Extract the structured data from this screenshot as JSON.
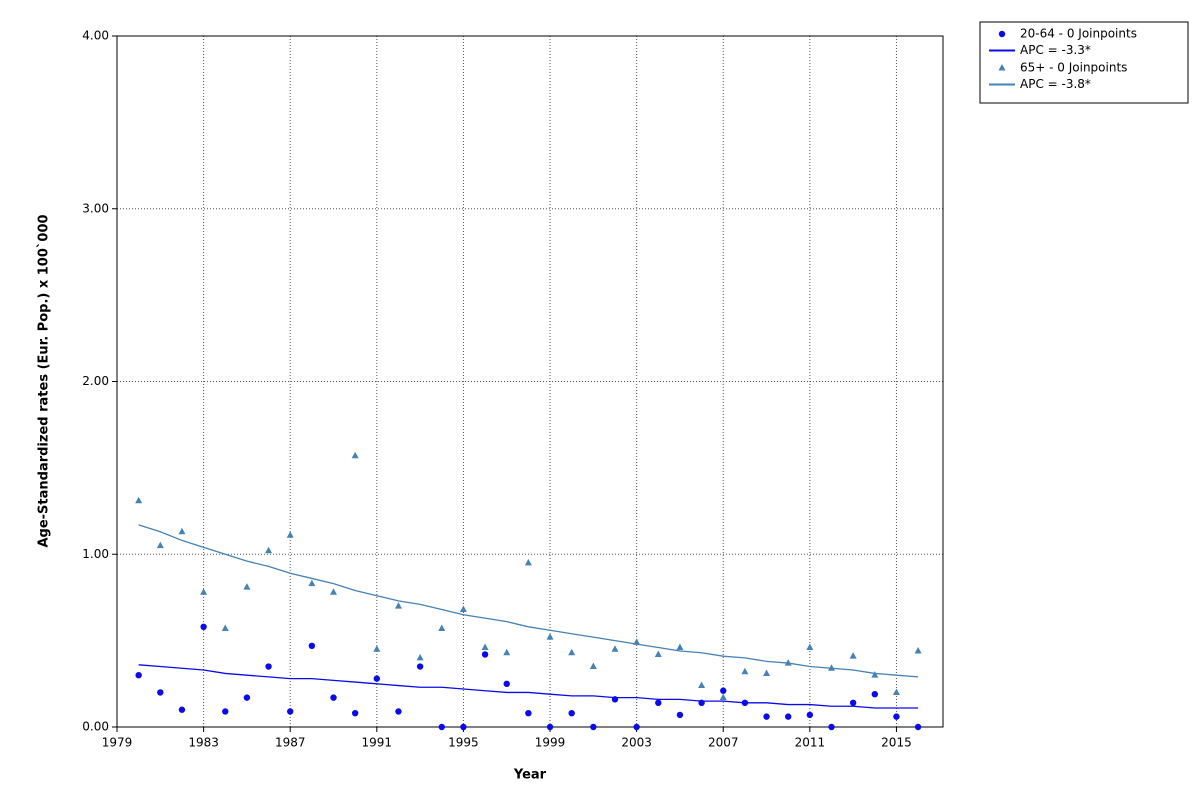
{
  "chart_data": {
    "type": "scatter",
    "xlabel": "Year",
    "ylabel": "Age-Standardized rates (Eur. Pop.) x 100`000",
    "x": [
      1980,
      1981,
      1982,
      1983,
      1984,
      1985,
      1986,
      1987,
      1988,
      1989,
      1990,
      1991,
      1992,
      1993,
      1994,
      1995,
      1996,
      1997,
      1998,
      1999,
      2000,
      2001,
      2002,
      2003,
      2004,
      2005,
      2006,
      2007,
      2008,
      2009,
      2010,
      2011,
      2012,
      2013,
      2014,
      2015,
      2016
    ],
    "xlim": [
      1979,
      2017.15
    ],
    "xticks": [
      1979,
      1983,
      1987,
      1991,
      1995,
      1999,
      2003,
      2007,
      2011,
      2015
    ],
    "ylim": [
      0,
      4
    ],
    "yticks": [
      {
        "value": 0,
        "label": "0.00"
      },
      {
        "value": 1,
        "label": "1.00"
      },
      {
        "value": 2,
        "label": "2.00"
      },
      {
        "value": 3,
        "label": "3.00"
      },
      {
        "value": 4,
        "label": "4.00"
      }
    ],
    "grid": true,
    "legend": "outside-top-right",
    "series": [
      {
        "name": "20-64 - 0 Joinpoints",
        "color": "#0a0aeb",
        "marker": "circle",
        "values": [
          0.3,
          0.2,
          0.1,
          0.58,
          0.09,
          0.17,
          0.35,
          0.09,
          0.47,
          0.17,
          0.08,
          0.28,
          0.09,
          0.35,
          0,
          0,
          0.42,
          0.25,
          0.08,
          0,
          0.08,
          0,
          0.16,
          0,
          0.14,
          0.07,
          0.14,
          0.21,
          0.14,
          0.06,
          0.06,
          0.07,
          0,
          0.14,
          0.19,
          0.06,
          0
        ]
      },
      {
        "name": "APC = -3.3*",
        "color": "#0a0aeb",
        "marker": "line",
        "values": [
          0.36,
          0.35,
          0.34,
          0.33,
          0.31,
          0.3,
          0.29,
          0.28,
          0.28,
          0.27,
          0.26,
          0.25,
          0.24,
          0.23,
          0.23,
          0.22,
          0.21,
          0.2,
          0.2,
          0.19,
          0.18,
          0.18,
          0.17,
          0.17,
          0.16,
          0.16,
          0.15,
          0.15,
          0.14,
          0.14,
          0.13,
          0.13,
          0.12,
          0.12,
          0.11,
          0.11,
          0.11
        ]
      },
      {
        "name": "65+ - 0 Joinpoints",
        "color": "#4682b4",
        "marker": "triangle",
        "values": [
          1.31,
          1.05,
          1.13,
          0.78,
          0.57,
          0.81,
          1.02,
          1.11,
          0.83,
          0.78,
          1.57,
          0.45,
          0.7,
          0.4,
          0.57,
          0.68,
          0.46,
          0.43,
          0.95,
          0.52,
          0.43,
          0.35,
          0.45,
          0.49,
          0.42,
          0.46,
          0.24,
          0.17,
          0.32,
          0.31,
          0.37,
          0.46,
          0.34,
          0.41,
          0.3,
          0.2,
          0.44
        ]
      },
      {
        "name": "APC = -3.8*",
        "color": "#4682b4",
        "marker": "line",
        "values": [
          1.17,
          1.13,
          1.08,
          1.04,
          1.0,
          0.96,
          0.93,
          0.89,
          0.86,
          0.83,
          0.79,
          0.76,
          0.73,
          0.71,
          0.68,
          0.65,
          0.63,
          0.61,
          0.58,
          0.56,
          0.54,
          0.52,
          0.5,
          0.48,
          0.46,
          0.44,
          0.43,
          0.41,
          0.4,
          0.38,
          0.37,
          0.35,
          0.34,
          0.33,
          0.31,
          0.3,
          0.29
        ]
      }
    ]
  }
}
